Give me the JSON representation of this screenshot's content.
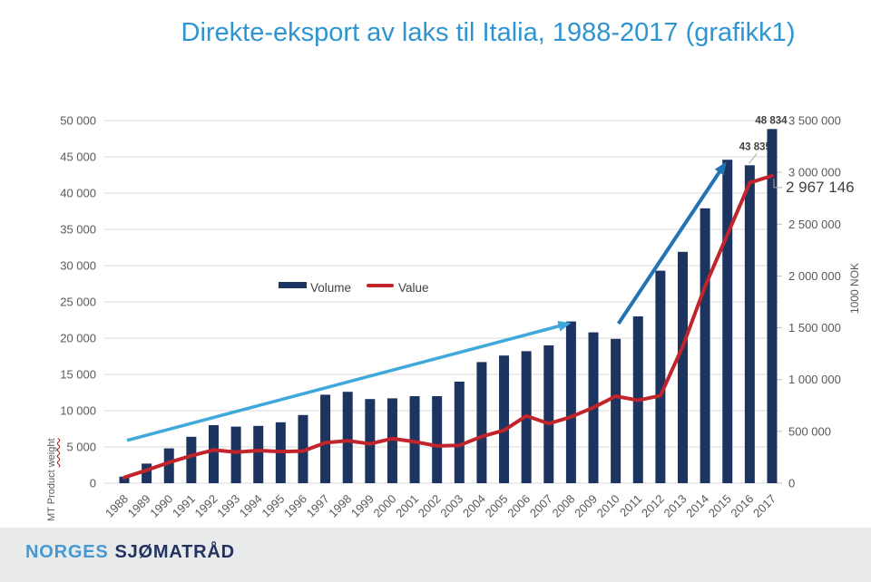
{
  "title": "Direkte-eksport av laks til Italia, 1988-2017 (grafikk1)",
  "footer": {
    "brand_primary": "NORGES",
    "brand_secondary": "SJØMATRÅD"
  },
  "chart_data": {
    "type": "bar",
    "combo": "bar + line, dual axis",
    "grid": "horizontal",
    "categories": [
      "1988",
      "1989",
      "1990",
      "1991",
      "1992",
      "1993",
      "1994",
      "1995",
      "1996",
      "1997",
      "1998",
      "1999",
      "2000",
      "2001",
      "2002",
      "2003",
      "2004",
      "2005",
      "2006",
      "2007",
      "2008",
      "2009",
      "2010",
      "2011",
      "2012",
      "2013",
      "2014",
      "2015",
      "2016",
      "2017"
    ],
    "series": [
      {
        "name": "Volume",
        "kind": "bar",
        "axis": "left",
        "color": "#1c345f",
        "values": [
          900,
          2700,
          4800,
          6400,
          8000,
          7800,
          7900,
          8400,
          9400,
          12200,
          12600,
          11600,
          11700,
          12000,
          12000,
          14000,
          16700,
          17600,
          18200,
          19000,
          22300,
          20800,
          19900,
          23000,
          29300,
          31900,
          37900,
          44600,
          43835,
          48834
        ]
      },
      {
        "name": "Value",
        "kind": "line",
        "axis": "right",
        "color": "#c2242b",
        "values": [
          55000,
          125000,
          200000,
          265000,
          320000,
          300000,
          315000,
          305000,
          310000,
          390000,
          410000,
          380000,
          430000,
          400000,
          360000,
          365000,
          450000,
          510000,
          650000,
          575000,
          640000,
          730000,
          840000,
          800000,
          845000,
          1320000,
          1900000,
          2400000,
          2900000,
          2967146
        ]
      }
    ],
    "left_axis": {
      "title_text": "MT Product",
      "title_text_wavy": "weight",
      "min": 0,
      "max": 50000,
      "step": 5000,
      "tick_labels": [
        "0",
        "5 000",
        "10 000",
        "15 000",
        "20 000",
        "25 000",
        "30 000",
        "35 000",
        "40 000",
        "45 000",
        "50 000"
      ]
    },
    "right_axis": {
      "title": "1000 NOK",
      "min": 0,
      "max": 3500000,
      "step": 500000,
      "tick_labels": [
        "0",
        "500 000",
        "1 000 000",
        "1 500 000",
        "2 000 000",
        "2 500 000",
        "3 000 000",
        "3 500 000"
      ]
    },
    "point_labels": [
      {
        "series": "Volume",
        "year": "2017",
        "text": "48 834"
      },
      {
        "series": "Volume",
        "year": "2016",
        "text": "43 835"
      },
      {
        "series": "Value",
        "year": "2017",
        "text": "2 967 146"
      }
    ],
    "trend_arrows": [
      {
        "from_year": "1988",
        "from_mt": 5900,
        "to_year": "2008",
        "to_mt": 22000,
        "color": "#3ea8db"
      },
      {
        "from_year": "2010",
        "from_mt": 22000,
        "to_year": "2015",
        "to_mt": 44000,
        "color": "#2173b3"
      }
    ],
    "legend": {
      "position": "inside-plot-upper-left",
      "entries": [
        "Volume",
        "Value"
      ]
    },
    "colors": {
      "title": "#2e95d2",
      "gridline": "#d9d9d9",
      "tick_text": "#595959",
      "data_label_text": "#404040",
      "leader_line": "#a6a6a6",
      "footer_band": "#e9eaec",
      "brand_primary": "#4799d2",
      "brand_secondary": "#22335f"
    }
  }
}
